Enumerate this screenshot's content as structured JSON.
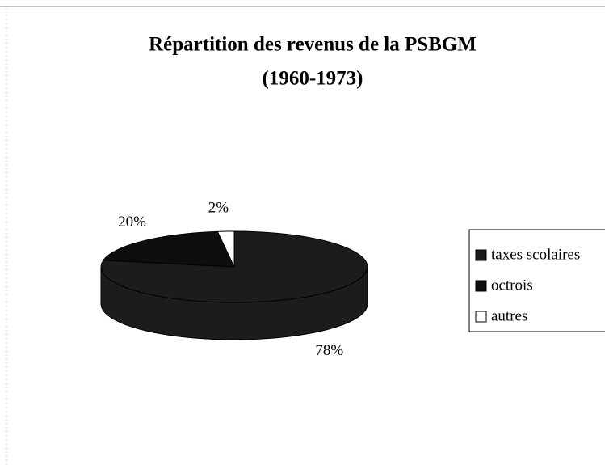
{
  "chart_data": {
    "type": "pie",
    "title": "Répartition des revenus de la PSBGM",
    "subtitle": "(1960-1973)",
    "categories": [
      "taxes scolaires",
      "octrois",
      "autres"
    ],
    "values": [
      78,
      20,
      2
    ],
    "value_labels": [
      "78%",
      "20%",
      "2%"
    ],
    "colors": [
      "#1c1c1c",
      "#0e0e0e",
      "#ffffff"
    ],
    "legend": "right"
  }
}
